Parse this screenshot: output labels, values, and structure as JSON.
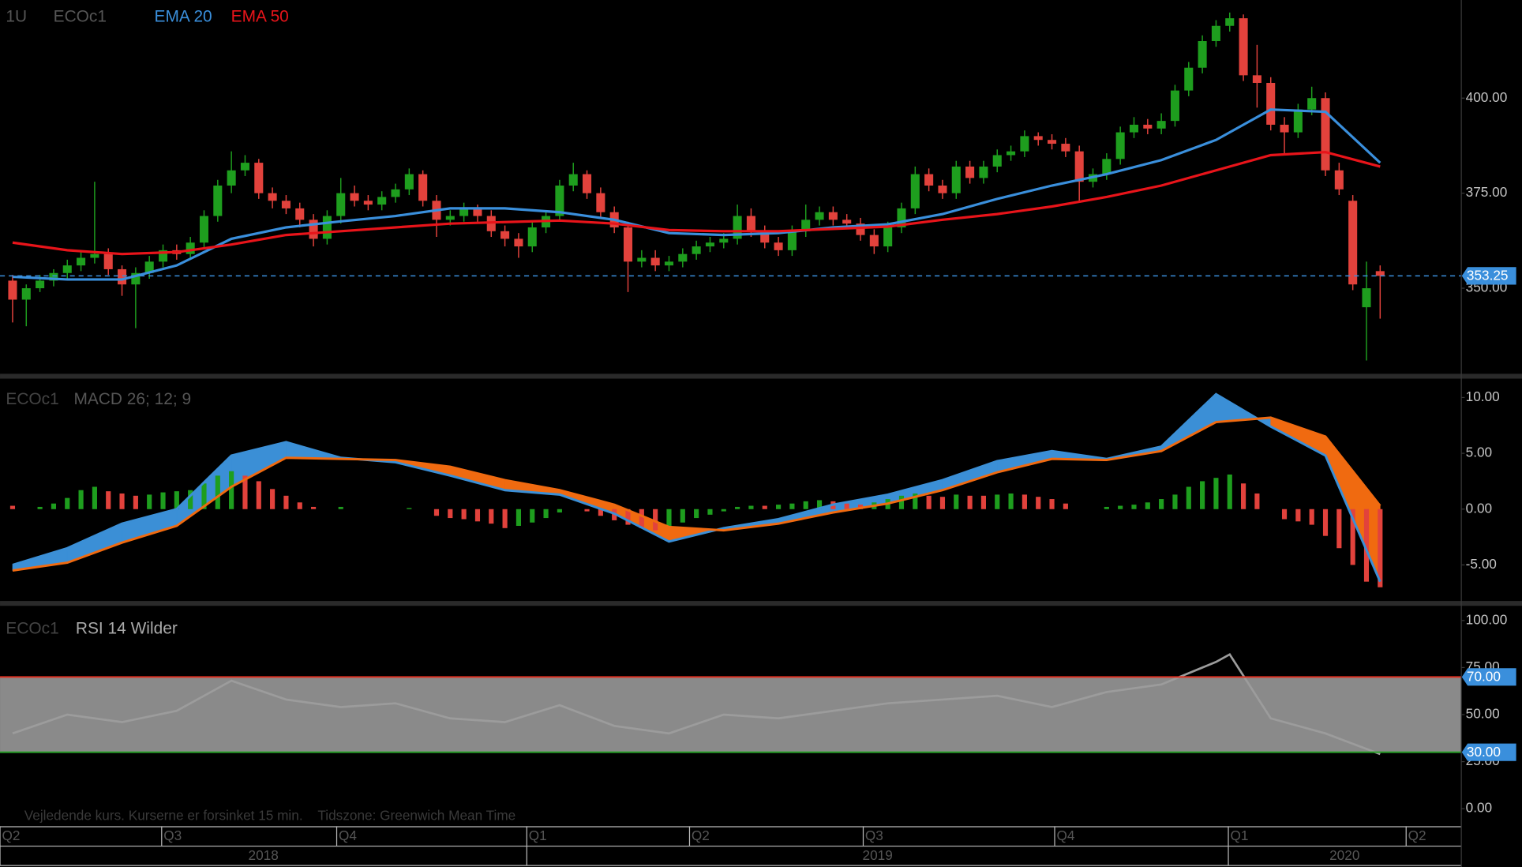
{
  "chart_data": [
    {
      "type": "candlestick",
      "title": "1U",
      "subtitle": "ECOc1",
      "open": [
        352,
        347,
        350,
        352,
        354,
        356,
        358,
        359,
        355,
        351,
        354,
        357,
        360,
        359,
        362,
        369,
        377,
        381,
        383,
        375,
        373,
        371,
        368,
        363,
        369,
        375,
        373,
        372,
        374,
        376,
        380,
        373,
        368,
        369,
        371,
        369,
        365,
        363,
        361,
        366,
        369,
        377,
        380,
        375,
        370,
        366,
        357,
        358,
        356,
        357,
        359,
        361,
        362,
        363,
        369,
        365,
        362,
        360,
        365,
        368,
        370,
        368,
        367,
        364,
        361,
        366,
        371,
        380,
        377,
        375,
        382,
        379,
        382,
        385,
        386,
        390,
        389,
        388,
        386,
        378,
        380,
        384,
        391,
        393,
        392,
        394,
        402,
        408,
        415,
        419,
        421,
        406,
        404,
        393,
        391,
        397,
        400,
        381,
        373,
        345,
        354.5
      ],
      "high": [
        353.5,
        351,
        353.5,
        355,
        357.5,
        360,
        378,
        360.5,
        356,
        355.5,
        358.5,
        361.5,
        361.5,
        363.5,
        370.5,
        378.5,
        386,
        385,
        384,
        376.5,
        374.5,
        372.5,
        369.5,
        370.5,
        379,
        377,
        374.5,
        375.5,
        377.5,
        381.5,
        381,
        374.5,
        370.5,
        372.5,
        372,
        370.5,
        366.5,
        364.5,
        367.5,
        370.5,
        378.5,
        383,
        381,
        376.5,
        371.5,
        367.5,
        360,
        360,
        358.5,
        360.5,
        362.5,
        363.5,
        364.5,
        372,
        371,
        366.5,
        363.5,
        366.5,
        372,
        371.5,
        371.5,
        369.5,
        368.5,
        365.5,
        367.5,
        372.5,
        382,
        381.5,
        378.5,
        383.5,
        383.5,
        383.5,
        386.5,
        387.5,
        391.5,
        391,
        390.5,
        389.5,
        387.5,
        381.5,
        385.5,
        392.5,
        395,
        394.5,
        396,
        403.5,
        409.5,
        416.5,
        420.5,
        422.5,
        422,
        414,
        405.5,
        395,
        398.5,
        403,
        401.5,
        383,
        374.5,
        357,
        356
      ],
      "low": [
        341,
        340,
        349,
        350.5,
        352.5,
        354.5,
        356.5,
        353.5,
        348,
        339.5,
        352.5,
        355.5,
        357.5,
        357.5,
        360.5,
        367.5,
        375,
        379.5,
        373.5,
        371,
        369.5,
        366,
        361,
        361.5,
        367,
        371.5,
        370.5,
        370.5,
        372.5,
        374.5,
        371.5,
        363.5,
        366.5,
        367.5,
        367.5,
        363.5,
        361,
        358,
        359.5,
        364.5,
        367.5,
        375.5,
        373.5,
        368.5,
        364.5,
        349,
        355.5,
        354.5,
        354.5,
        355.5,
        357.5,
        359.5,
        360.5,
        361.5,
        363.5,
        360.5,
        358.5,
        358.5,
        363.5,
        366.5,
        366.5,
        365.5,
        362.5,
        359,
        359.5,
        364.5,
        369.5,
        375.5,
        373.5,
        373.5,
        377.5,
        377.5,
        380.5,
        383.5,
        384.5,
        387.5,
        386.5,
        384.5,
        373,
        376.5,
        378.5,
        382.5,
        389.5,
        390.5,
        390.5,
        392.5,
        400.5,
        406.5,
        413.5,
        417.5,
        404.5,
        397.5,
        391.5,
        385,
        389.5,
        395.5,
        379.5,
        374.5,
        349.5,
        331,
        342
      ],
      "close": [
        347,
        350,
        352,
        354,
        356,
        358,
        359,
        355,
        351,
        354,
        357,
        360,
        359,
        362,
        369,
        377,
        381,
        383,
        375,
        373,
        371,
        368,
        363,
        369,
        375,
        373,
        372,
        374,
        376,
        380,
        373,
        368,
        369,
        371,
        369,
        365,
        363,
        361,
        366,
        369,
        377,
        380,
        375,
        370,
        366,
        357,
        358,
        356,
        357,
        359,
        361,
        362,
        363,
        369,
        365,
        362,
        360,
        365,
        368,
        370,
        368,
        367,
        364,
        361,
        366,
        371,
        380,
        377,
        375,
        382,
        379,
        382,
        385,
        386,
        390,
        389,
        388,
        386,
        378,
        380,
        384,
        391,
        393,
        392,
        394,
        402,
        408,
        415,
        419,
        421,
        406,
        404,
        393,
        391,
        397,
        400,
        381,
        376,
        351,
        350,
        353.25
      ],
      "up_color": "#1e9e1e",
      "down_color": "#e2423c",
      "overlays": [
        {
          "name": "EMA 20",
          "color": "#3a8fdc",
          "x": [
            0,
            4,
            8,
            12,
            16,
            20,
            24,
            28,
            32,
            36,
            40,
            44,
            48,
            52,
            56,
            60,
            64,
            68,
            72,
            76,
            80,
            84,
            88,
            92,
            96,
            100
          ],
          "values": [
            353,
            352.3,
            352.3,
            356,
            363,
            366,
            367.6,
            369,
            371,
            371,
            370,
            368,
            364.5,
            364,
            364.5,
            366,
            366.8,
            369.5,
            373.5,
            377,
            380,
            383.7,
            389,
            397,
            396.4,
            383
          ]
        },
        {
          "name": "EMA 50",
          "color": "#e8141a",
          "x": [
            0,
            4,
            8,
            12,
            16,
            20,
            24,
            28,
            32,
            36,
            40,
            44,
            48,
            52,
            56,
            60,
            64,
            68,
            72,
            76,
            80,
            84,
            88,
            92,
            96,
            100
          ],
          "values": [
            362,
            360,
            359,
            359.5,
            361.5,
            364,
            365,
            366,
            367,
            367.4,
            367.8,
            367,
            365.3,
            365,
            365,
            365.6,
            366.2,
            368,
            369.5,
            371.5,
            374,
            377,
            381,
            385,
            385.8,
            382
          ]
        }
      ],
      "last": {
        "value": 353.25,
        "label": "353.25"
      },
      "last_color": "#3a8fdc",
      "ylim": [
        327.5,
        425.8
      ],
      "yticks": [
        {
          "value": 350,
          "label": "350.00"
        },
        {
          "value": 375,
          "label": "375.00"
        },
        {
          "value": 400,
          "label": "400.00"
        }
      ],
      "xlim": [
        -0.92,
        105.9
      ],
      "xticks": [
        {
          "value": -0.92,
          "label": "Q2"
        },
        {
          "value": 10.9,
          "label": "Q3"
        },
        {
          "value": 23.7,
          "label": "Q4"
        },
        {
          "value": 37.6,
          "label": "Q1"
        },
        {
          "value": 49.5,
          "label": "Q2"
        },
        {
          "value": 62.2,
          "label": "Q3"
        },
        {
          "value": 76.2,
          "label": "Q4"
        },
        {
          "value": 88.9,
          "label": "Q1"
        },
        {
          "value": 101.9,
          "label": "Q2"
        }
      ],
      "year_ticks": [
        {
          "value": -0.92,
          "label": "2018"
        },
        {
          "value": 37.6,
          "label": "2019"
        },
        {
          "value": 88.9,
          "label": "2020"
        }
      ]
    },
    {
      "type": "macd",
      "title": "ECOc1",
      "subtitle": "MACD 26; 12; 9",
      "x": [
        0,
        4,
        8,
        12,
        16,
        20,
        24,
        28,
        32,
        36,
        40,
        44,
        48,
        52,
        56,
        60,
        64,
        68,
        72,
        76,
        80,
        84,
        88,
        92,
        96,
        100
      ],
      "macd": [
        -5.0,
        -3.5,
        -1.3,
        0.0,
        4.8,
        6.0,
        4.6,
        4.2,
        3.0,
        1.7,
        1.3,
        -0.4,
        -2.9,
        -1.7,
        -0.9,
        0.4,
        1.3,
        2.6,
        4.3,
        5.2,
        4.5,
        5.6,
        10.3,
        7.4,
        4.8,
        -6.5
      ],
      "signal": [
        -5.5,
        -4.8,
        -3.0,
        -1.5,
        2.0,
        4.6,
        4.5,
        4.4,
        3.8,
        2.6,
        1.7,
        0.4,
        -1.6,
        -1.9,
        -1.3,
        -0.3,
        0.5,
        1.7,
        3.3,
        4.5,
        4.4,
        5.2,
        7.8,
        8.2,
        6.5,
        0.3
      ],
      "macd_color": "#3b8fd6",
      "signal_color": "#f06a10",
      "histogram": [
        0.3,
        0,
        0.2,
        0.5,
        1.0,
        1.7,
        2.0,
        1.6,
        1.4,
        1.2,
        1.3,
        1.5,
        1.6,
        1.7,
        2.3,
        3.0,
        3.4,
        3.0,
        2.5,
        1.8,
        1.2,
        0.6,
        0.2,
        0,
        0.2,
        0,
        0,
        0,
        0,
        0.1,
        0,
        -0.6,
        -0.8,
        -0.9,
        -1.1,
        -1.3,
        -1.7,
        -1.5,
        -1.2,
        -0.8,
        -0.3,
        0,
        -0.2,
        -0.6,
        -1.0,
        -1.4,
        -1.7,
        -1.9,
        -1.6,
        -1.2,
        -0.8,
        -0.5,
        -0.2,
        0.2,
        0.3,
        0.3,
        0.4,
        0.5,
        0.7,
        0.8,
        0.7,
        0.5,
        0.4,
        0.6,
        0.9,
        1.2,
        1.4,
        1.2,
        1.1,
        1.3,
        1.2,
        1.2,
        1.3,
        1.4,
        1.3,
        1.1,
        0.9,
        0.5,
        0,
        0,
        0.2,
        0.3,
        0.4,
        0.6,
        0.9,
        1.3,
        2.0,
        2.5,
        2.8,
        3.1,
        2.3,
        1.4,
        0,
        -0.9,
        -1.1,
        -1.4,
        -2.4,
        -3.5,
        -5.0,
        -6.5,
        -7.0
      ],
      "hist_up_color": "#1e9e1e",
      "hist_down_color": "#e2423c",
      "ylim": [
        -8.23,
        11.69
      ],
      "yticks": [
        {
          "value": -5,
          "label": "-5.00"
        },
        {
          "value": 0,
          "label": "0.00"
        },
        {
          "value": 5,
          "label": "5.00"
        },
        {
          "value": 10,
          "label": "10.00"
        }
      ]
    },
    {
      "type": "rsi",
      "title": "ECOc1",
      "subtitle": "RSI 14 Wilder",
      "x": [
        0,
        4,
        8,
        12,
        16,
        20,
        24,
        28,
        32,
        36,
        40,
        44,
        48,
        52,
        56,
        60,
        64,
        68,
        72,
        76,
        80,
        84,
        88,
        89,
        92,
        96,
        100
      ],
      "values": [
        40,
        50,
        46,
        52,
        68,
        58,
        54,
        56,
        48,
        46,
        55,
        44,
        40,
        50,
        48,
        52,
        56,
        58,
        60,
        54,
        62,
        66,
        78,
        82,
        48,
        40,
        29
      ],
      "color": "#9c9c9c",
      "band_color": "#8a8a8a",
      "levels": [
        {
          "value": 70,
          "label": "70.00",
          "color": "#e03020"
        },
        {
          "value": 30,
          "label": "30.00",
          "color": "#2aa02a"
        }
      ],
      "badge_color": "#3a8fdc",
      "ylim": [
        -8.8,
        107.8
      ],
      "yticks": [
        {
          "value": 0,
          "label": "0.00"
        },
        {
          "value": 25,
          "label": "25.00"
        },
        {
          "value": 50,
          "label": "50.00"
        },
        {
          "value": 75,
          "label": "75.00"
        },
        {
          "value": 100,
          "label": "100.00"
        }
      ],
      "footnote": "Vejledende kurs. Kurserne er forsinket 15 min.    Tidszone: Greenwich Mean Time"
    }
  ]
}
